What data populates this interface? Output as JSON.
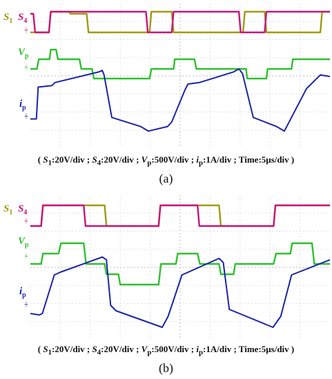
{
  "chart_data": [
    {
      "type": "line",
      "panel_label": "(a)",
      "caption": {
        "s1_label": "S",
        "s1_sub": "1",
        "s1_scale": ":20V/div ; ",
        "s4_label": "S",
        "s4_sub": "4",
        "s4_scale": ":20V/div ; ",
        "vp_label": "V",
        "vp_sub": "p",
        "vp_scale": ":500V/div ; ",
        "ip_label": "i",
        "ip_sub": "p",
        "ip_scale": ":1A/div ; Time:5μs/div )",
        "open": "( "
      },
      "channels": [
        {
          "name_main": "S",
          "name_sub": "1",
          "color": "#a09a10"
        },
        {
          "name_main": "S",
          "name_sub": "4",
          "color": "#c8147a"
        },
        {
          "name_main": "V",
          "name_sub": "p",
          "color": "#2ec02e"
        },
        {
          "name_main": "i",
          "name_sub": "p",
          "color": "#1a24a8"
        }
      ],
      "x_unit": "μs",
      "x_range": [
        0,
        50
      ],
      "grid": true,
      "series": [
        {
          "name": "S1",
          "x": [
            0,
            3.1,
            3.4,
            6.4,
            6.7,
            9.4,
            9.7,
            19.9,
            20.2,
            23.6,
            23.9,
            35.5,
            35.8,
            39.1,
            39.4,
            48.4,
            48.7,
            50
          ],
          "y": [
            0,
            0,
            1,
            1,
            0.9,
            0.9,
            0,
            0,
            1,
            1,
            0,
            0,
            1,
            1,
            0,
            0,
            1,
            1
          ]
        },
        {
          "name": "S4",
          "x": [
            0,
            0.5,
            0.8,
            3.1,
            3.4,
            19.3,
            19.6,
            23.6,
            23.9,
            34.8,
            35.1,
            39.1,
            39.4,
            50
          ],
          "y": [
            0.9,
            0.9,
            0,
            0,
            1,
            1,
            0,
            0,
            1,
            1,
            0,
            0,
            1,
            1
          ]
        },
        {
          "name": "Vp",
          "x": [
            0,
            1.1,
            1.4,
            3.2,
            3.4,
            4.3,
            4.6,
            8.2,
            8.5,
            10.3,
            10.6,
            19.9,
            20.2,
            23.9,
            24.1,
            27.4,
            27.7,
            36.0,
            36.2,
            39.4,
            39.6,
            43.6,
            43.8,
            50
          ],
          "y": [
            0,
            0,
            1,
            1,
            2,
            2,
            1,
            1,
            0,
            0,
            -1,
            -1,
            0,
            0,
            1,
            1,
            0,
            0,
            -1,
            -1,
            0,
            0,
            1,
            1
          ]
        },
        {
          "name": "ip",
          "x": [
            0,
            1.0,
            1.3,
            3.6,
            4.1,
            11.4,
            12.0,
            12.3,
            13.6,
            18.4,
            19.7,
            22.9,
            23.6,
            25.8,
            26.3,
            28.2,
            33.9,
            34.8,
            35.4,
            37.2,
            41.1,
            42.4,
            46.1,
            48.4,
            50
          ],
          "y": [
            -0.8,
            -0.8,
            1.3,
            1.4,
            1.6,
            2.3,
            2.4,
            2.1,
            -0.7,
            -1.3,
            -1.6,
            -1.3,
            -1.0,
            1.1,
            1.5,
            1.6,
            2.3,
            2.5,
            2.2,
            -0.7,
            -1.3,
            -1.6,
            1.2,
            2.1,
            2.0
          ]
        }
      ]
    },
    {
      "type": "line",
      "panel_label": "(b)",
      "caption": {
        "s1_label": "S",
        "s1_sub": "1",
        "s1_scale": ":20V/div ; ",
        "s4_label": "S",
        "s4_sub": "4",
        "s4_scale": ":20V/div ; ",
        "vp_label": "V",
        "vp_sub": "p",
        "vp_scale": ":500V/div ; ",
        "ip_label": "i",
        "ip_sub": "p",
        "ip_scale": ":1A/div ; Time:5μs/div )",
        "open": "( "
      },
      "channels": [
        {
          "name_main": "S",
          "name_sub": "1",
          "color": "#a09a10"
        },
        {
          "name_main": "S",
          "name_sub": "4",
          "color": "#c8147a"
        },
        {
          "name_main": "V",
          "name_sub": "p",
          "color": "#2ec02e"
        },
        {
          "name_main": "i",
          "name_sub": "p",
          "color": "#1a24a8"
        }
      ],
      "x_unit": "μs",
      "x_range": [
        0,
        50
      ],
      "grid": true,
      "series": [
        {
          "name": "S1",
          "x": [
            0,
            1.8,
            2.1,
            12.4,
            12.7,
            21.4,
            21.7,
            31.5,
            31.8,
            40.6,
            40.9,
            50
          ],
          "y": [
            0,
            0,
            1,
            1,
            0,
            0,
            1,
            1,
            0,
            0,
            1,
            1
          ]
        },
        {
          "name": "S4",
          "x": [
            0,
            1.8,
            2.1,
            8.9,
            9.2,
            21.4,
            21.7,
            27.9,
            28.2,
            40.6,
            40.9,
            50
          ],
          "y": [
            0,
            0,
            1,
            1,
            0,
            0,
            1,
            1,
            0,
            0,
            1,
            1
          ]
        },
        {
          "name": "Vp",
          "x": [
            0,
            1.8,
            2.1,
            4.7,
            5.1,
            8.9,
            9.3,
            12.4,
            12.7,
            14.7,
            15.0,
            21.4,
            21.8,
            24.3,
            24.6,
            27.9,
            28.3,
            31.5,
            31.8,
            33.9,
            34.2,
            40.6,
            41.0,
            43.4,
            43.7,
            47.0,
            47.4,
            50
          ],
          "y": [
            0,
            0,
            1,
            1,
            2,
            2,
            0,
            0,
            -1,
            -1,
            -2,
            -2,
            0,
            0,
            1,
            1,
            0,
            0,
            -1,
            -1,
            0,
            0,
            1,
            1,
            2,
            2,
            0,
            0
          ]
        },
        {
          "name": "ip",
          "x": [
            0,
            1.5,
            2.0,
            4.0,
            5.0,
            12.0,
            12.7,
            13.4,
            14.3,
            22.0,
            23.0,
            25.3,
            31.5,
            32.2,
            33.2,
            40.5,
            41.8,
            43.6,
            50
          ],
          "y": [
            -1.2,
            -1.3,
            -1.2,
            1.6,
            1.8,
            2.9,
            2.7,
            -0.6,
            -1.0,
            -2.2,
            -1.4,
            1.6,
            2.8,
            2.5,
            -0.9,
            -2.2,
            -1.4,
            1.6,
            2.7
          ]
        }
      ]
    }
  ]
}
